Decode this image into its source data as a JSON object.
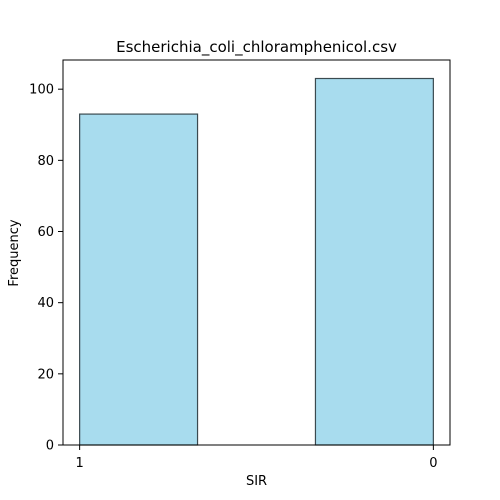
{
  "chart_data": {
    "type": "bar",
    "title": "Escherichia_coli_chloramphenicol.csv",
    "xlabel": "SIR",
    "ylabel": "Frequency",
    "categories": [
      "1",
      "0"
    ],
    "values": [
      93,
      103
    ],
    "ylim": [
      0,
      108.2
    ],
    "yticks": [
      0,
      20,
      40,
      60,
      80,
      100
    ],
    "grid": false,
    "bar_color": "#a8dcee",
    "bar_edge_color": "#3b4a50"
  }
}
